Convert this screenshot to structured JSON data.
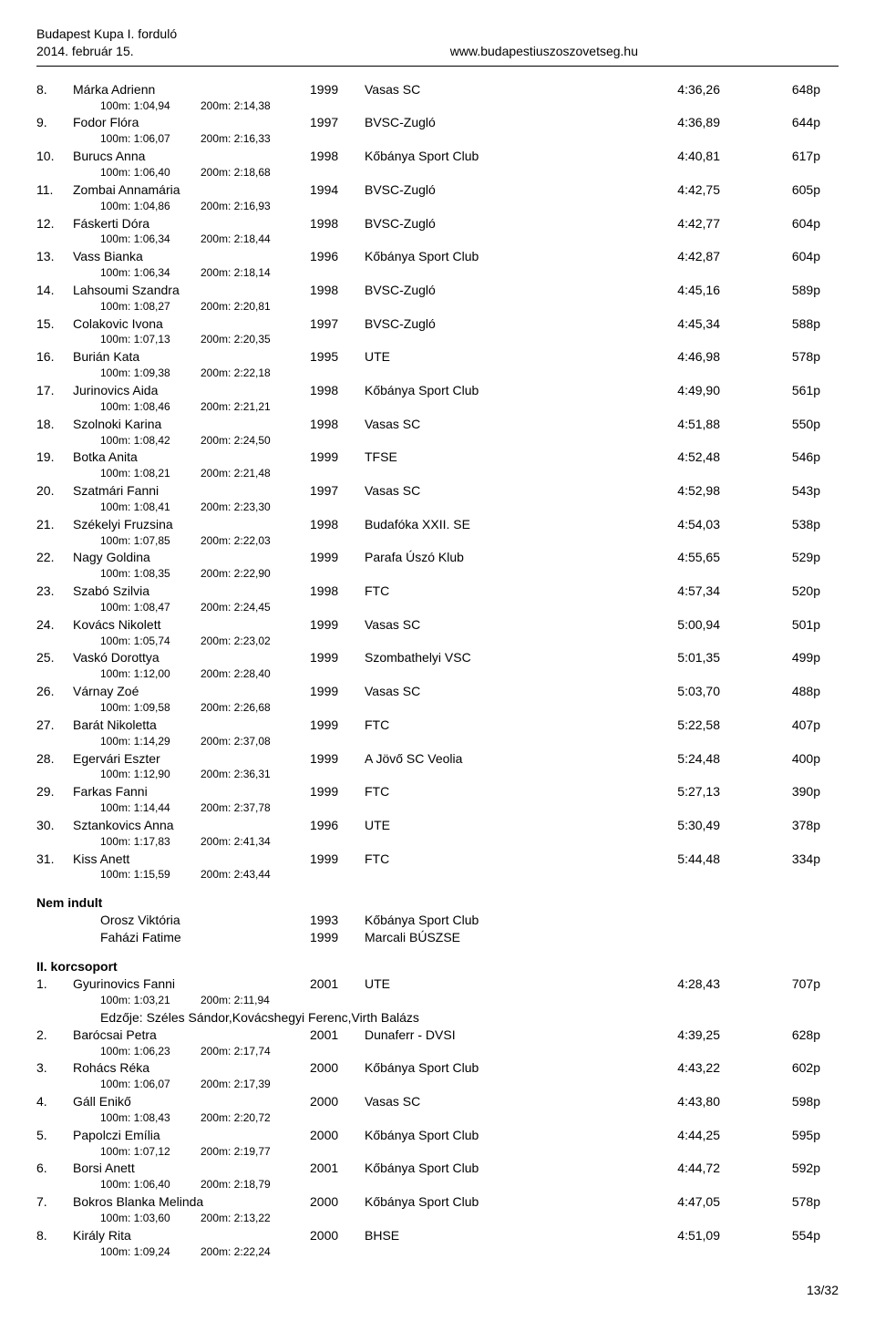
{
  "header": {
    "title": "Budapest Kupa I. forduló",
    "date": "2014. február 15.",
    "url": "www.budapestiuszoszovetseg.hu"
  },
  "results": [
    {
      "rank": "8.",
      "name": "Márka Adrienn",
      "year": "1999",
      "club": "Vasas SC",
      "time": "4:36,26",
      "pts": "648p",
      "s100": "1:04,94",
      "s200": "2:14,38"
    },
    {
      "rank": "9.",
      "name": "Fodor Flóra",
      "year": "1997",
      "club": "BVSC-Zugló",
      "time": "4:36,89",
      "pts": "644p",
      "s100": "1:06,07",
      "s200": "2:16,33"
    },
    {
      "rank": "10.",
      "name": "Burucs Anna",
      "year": "1998",
      "club": "Kőbánya Sport Club",
      "time": "4:40,81",
      "pts": "617p",
      "s100": "1:06,40",
      "s200": "2:18,68"
    },
    {
      "rank": "11.",
      "name": "Zombai Annamária",
      "year": "1994",
      "club": "BVSC-Zugló",
      "time": "4:42,75",
      "pts": "605p",
      "s100": "1:04,86",
      "s200": "2:16,93"
    },
    {
      "rank": "12.",
      "name": "Fáskerti Dóra",
      "year": "1998",
      "club": "BVSC-Zugló",
      "time": "4:42,77",
      "pts": "604p",
      "s100": "1:06,34",
      "s200": "2:18,44"
    },
    {
      "rank": "13.",
      "name": "Vass Bianka",
      "year": "1996",
      "club": "Kőbánya Sport Club",
      "time": "4:42,87",
      "pts": "604p",
      "s100": "1:06,34",
      "s200": "2:18,14"
    },
    {
      "rank": "14.",
      "name": "Lahsoumi Szandra",
      "year": "1998",
      "club": "BVSC-Zugló",
      "time": "4:45,16",
      "pts": "589p",
      "s100": "1:08,27",
      "s200": "2:20,81"
    },
    {
      "rank": "15.",
      "name": "Colakovic Ivona",
      "year": "1997",
      "club": "BVSC-Zugló",
      "time": "4:45,34",
      "pts": "588p",
      "s100": "1:07,13",
      "s200": "2:20,35"
    },
    {
      "rank": "16.",
      "name": "Burián Kata",
      "year": "1995",
      "club": "UTE",
      "time": "4:46,98",
      "pts": "578p",
      "s100": "1:09,38",
      "s200": "2:22,18"
    },
    {
      "rank": "17.",
      "name": "Jurinovics Aida",
      "year": "1998",
      "club": "Kőbánya Sport Club",
      "time": "4:49,90",
      "pts": "561p",
      "s100": "1:08,46",
      "s200": "2:21,21"
    },
    {
      "rank": "18.",
      "name": "Szolnoki Karina",
      "year": "1998",
      "club": "Vasas SC",
      "time": "4:51,88",
      "pts": "550p",
      "s100": "1:08,42",
      "s200": "2:24,50"
    },
    {
      "rank": "19.",
      "name": "Botka Anita",
      "year": "1999",
      "club": "TFSE",
      "time": "4:52,48",
      "pts": "546p",
      "s100": "1:08,21",
      "s200": "2:21,48"
    },
    {
      "rank": "20.",
      "name": "Szatmári Fanni",
      "year": "1997",
      "club": "Vasas SC",
      "time": "4:52,98",
      "pts": "543p",
      "s100": "1:08,41",
      "s200": "2:23,30"
    },
    {
      "rank": "21.",
      "name": "Székelyi Fruzsina",
      "year": "1998",
      "club": "Budafóka XXII. SE",
      "time": "4:54,03",
      "pts": "538p",
      "s100": "1:07,85",
      "s200": "2:22,03"
    },
    {
      "rank": "22.",
      "name": "Nagy Goldina",
      "year": "1999",
      "club": "Parafa Úszó Klub",
      "time": "4:55,65",
      "pts": "529p",
      "s100": "1:08,35",
      "s200": "2:22,90"
    },
    {
      "rank": "23.",
      "name": "Szabó Szilvia",
      "year": "1998",
      "club": "FTC",
      "time": "4:57,34",
      "pts": "520p",
      "s100": "1:08,47",
      "s200": "2:24,45"
    },
    {
      "rank": "24.",
      "name": "Kovács Nikolett",
      "year": "1999",
      "club": "Vasas SC",
      "time": "5:00,94",
      "pts": "501p",
      "s100": "1:05,74",
      "s200": "2:23,02"
    },
    {
      "rank": "25.",
      "name": "Vaskó Dorottya",
      "year": "1999",
      "club": "Szombathelyi VSC",
      "time": "5:01,35",
      "pts": "499p",
      "s100": "1:12,00",
      "s200": "2:28,40"
    },
    {
      "rank": "26.",
      "name": "Várnay Zoé",
      "year": "1999",
      "club": "Vasas SC",
      "time": "5:03,70",
      "pts": "488p",
      "s100": "1:09,58",
      "s200": "2:26,68"
    },
    {
      "rank": "27.",
      "name": "Barát Nikoletta",
      "year": "1999",
      "club": "FTC",
      "time": "5:22,58",
      "pts": "407p",
      "s100": "1:14,29",
      "s200": "2:37,08"
    },
    {
      "rank": "28.",
      "name": "Egervári Eszter",
      "year": "1999",
      "club": "A Jövő SC Veolia",
      "time": "5:24,48",
      "pts": "400p",
      "s100": "1:12,90",
      "s200": "2:36,31"
    },
    {
      "rank": "29.",
      "name": "Farkas Fanni",
      "year": "1999",
      "club": "FTC",
      "time": "5:27,13",
      "pts": "390p",
      "s100": "1:14,44",
      "s200": "2:37,78"
    },
    {
      "rank": "30.",
      "name": "Sztankovics Anna",
      "year": "1996",
      "club": "UTE",
      "time": "5:30,49",
      "pts": "378p",
      "s100": "1:17,83",
      "s200": "2:41,34"
    },
    {
      "rank": "31.",
      "name": "Kiss Anett",
      "year": "1999",
      "club": "FTC",
      "time": "5:44,48",
      "pts": "334p",
      "s100": "1:15,59",
      "s200": "2:43,44"
    }
  ],
  "dns": {
    "heading": "Nem indult",
    "entries": [
      {
        "name": "Orosz Viktória",
        "year": "1993",
        "club": "Kőbánya Sport Club"
      },
      {
        "name": "Faházi Fatime",
        "year": "1999",
        "club": "Marcali BÚSZSE"
      }
    ]
  },
  "group2": {
    "heading": "II. korcsoport",
    "coach_line": "Edzője: Széles Sándor,Kovácshegyi Ferenc,Virth Balázs",
    "results": [
      {
        "rank": "1.",
        "name": "Gyurinovics Fanni",
        "year": "2001",
        "club": "UTE",
        "time": "4:28,43",
        "pts": "707p",
        "s100": "1:03,21",
        "s200": "2:11,94",
        "coach_after_splits": true
      },
      {
        "rank": "2.",
        "name": "Barócsai Petra",
        "year": "2001",
        "club": "Dunaferr - DVSI",
        "time": "4:39,25",
        "pts": "628p",
        "s100": "1:06,23",
        "s200": "2:17,74"
      },
      {
        "rank": "3.",
        "name": "Rohács Réka",
        "year": "2000",
        "club": "Kőbánya Sport Club",
        "time": "4:43,22",
        "pts": "602p",
        "s100": "1:06,07",
        "s200": "2:17,39"
      },
      {
        "rank": "4.",
        "name": "Gáll Enikő",
        "year": "2000",
        "club": "Vasas SC",
        "time": "4:43,80",
        "pts": "598p",
        "s100": "1:08,43",
        "s200": "2:20,72"
      },
      {
        "rank": "5.",
        "name": "Papolczi Emília",
        "year": "2000",
        "club": "Kőbánya Sport Club",
        "time": "4:44,25",
        "pts": "595p",
        "s100": "1:07,12",
        "s200": "2:19,77"
      },
      {
        "rank": "6.",
        "name": "Borsi Anett",
        "year": "2001",
        "club": "Kőbánya Sport Club",
        "time": "4:44,72",
        "pts": "592p",
        "s100": "1:06,40",
        "s200": "2:18,79"
      },
      {
        "rank": "7.",
        "name": "Bokros Blanka Melinda",
        "year": "2000",
        "club": "Kőbánya Sport Club",
        "time": "4:47,05",
        "pts": "578p",
        "s100": "1:03,60",
        "s200": "2:13,22"
      },
      {
        "rank": "8.",
        "name": "Király Rita",
        "year": "2000",
        "club": "BHSE",
        "time": "4:51,09",
        "pts": "554p",
        "s100": "1:09,24",
        "s200": "2:22,24"
      }
    ]
  },
  "labels": {
    "split100_prefix": "100m: ",
    "split200_prefix": "200m: "
  },
  "footer": "13/32"
}
